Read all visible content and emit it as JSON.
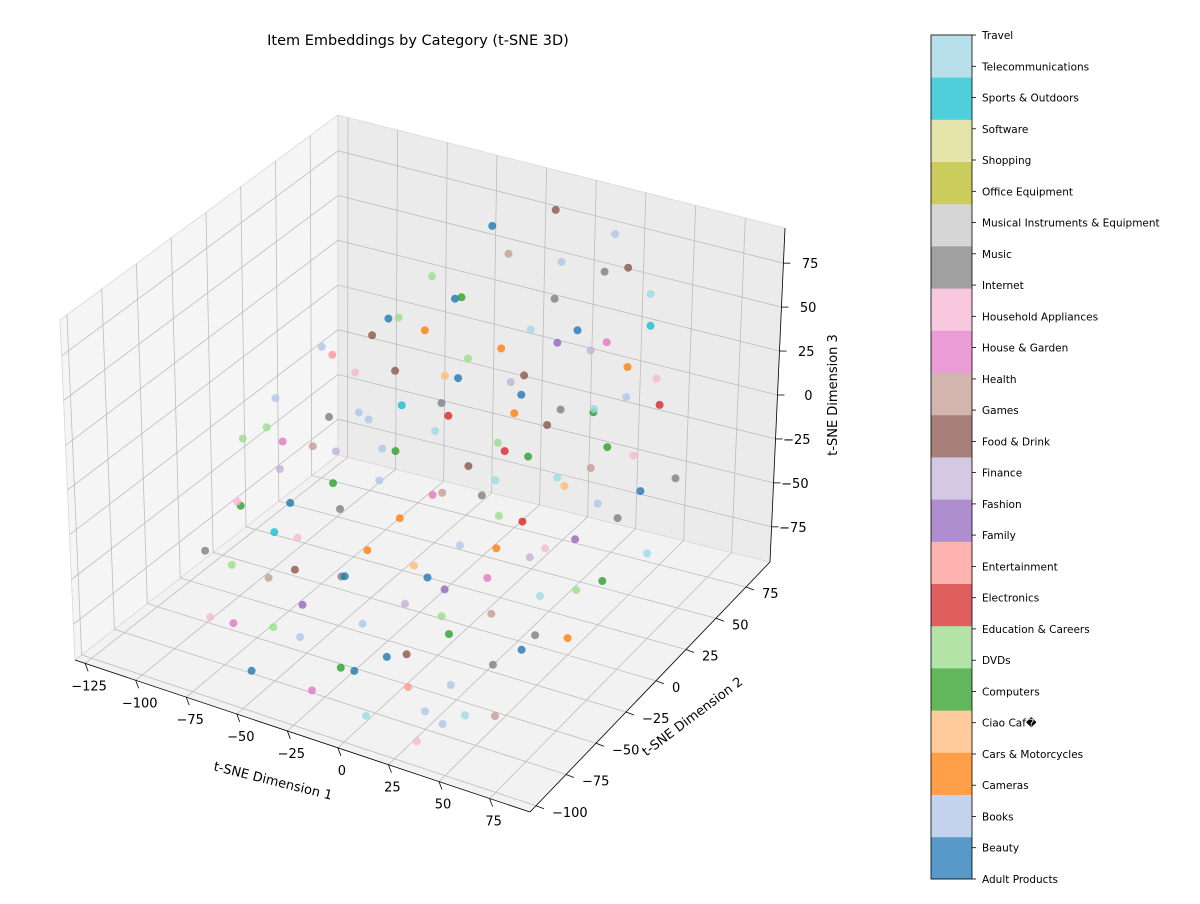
{
  "chart_data": {
    "type": "scatter",
    "projection": "3d",
    "title": "Item Embeddings by Category (t-SNE 3D)",
    "xlabel": "t-SNE Dimension 1",
    "ylabel": "t-SNE Dimension 2",
    "zlabel": "t-SNE Dimension 3",
    "xlim": [
      -130,
      95
    ],
    "ylim": [
      -105,
      95
    ],
    "zlim": [
      -95,
      95
    ],
    "xticks": [
      -125,
      -100,
      -75,
      -50,
      -25,
      0,
      25,
      50,
      75
    ],
    "yticks": [
      -100,
      -75,
      -50,
      -25,
      0,
      25,
      50,
      75
    ],
    "zticks": [
      -75,
      -50,
      -25,
      0,
      25,
      50,
      75
    ],
    "grid": true,
    "legend": "colorbar-right",
    "colormap": "tab20",
    "categories": [
      {
        "name": "Adult Products",
        "color": "#5899C9"
      },
      {
        "name": "Beauty",
        "color": "#C3D4EC"
      },
      {
        "name": "Books",
        "color": "#FF9F48"
      },
      {
        "name": "Cameras",
        "color": "#FFCB9A"
      },
      {
        "name": "Cars & Motorcycles",
        "color": "#62B65C"
      },
      {
        "name": "Ciao Caf�",
        "color": "#B4E3A8"
      },
      {
        "name": "Computers",
        "color": "#DF5F5F"
      },
      {
        "name": "DVDs",
        "color": "#FFB3B1"
      },
      {
        "name": "Education & Careers",
        "color": "#AE8ECF"
      },
      {
        "name": "Electronics",
        "color": "#D4C8E2"
      },
      {
        "name": "Entertainment",
        "color": "#A98079"
      },
      {
        "name": "Family",
        "color": "#D2B5AE"
      },
      {
        "name": "Fashion",
        "color": "#E99CD5"
      },
      {
        "name": "Finance",
        "color": "#F9C8DE"
      },
      {
        "name": "Food & Drink",
        "color": "#A0A0A0"
      },
      {
        "name": "Games",
        "color": "#D6D6D6"
      },
      {
        "name": "Health",
        "color": "#CACC5B"
      },
      {
        "name": "House & Garden",
        "color": "#E4E4AB"
      },
      {
        "name": "Household Appliances",
        "color": "#4FCEDB"
      },
      {
        "name": "Internet",
        "color": "#B7E0EA"
      }
    ],
    "colorbar_labels": [
      "Adult Products",
      "Beauty",
      "Books",
      "Cameras",
      "Cars & Motorcycles",
      "Ciao Caf�",
      "Computers",
      "DVDs",
      "Education & Careers",
      "Electronics",
      "Entertainment",
      "Family",
      "Fashion",
      "Finance",
      "Food & Drink",
      "Games",
      "Health",
      "House & Garden",
      "Household Appliances",
      "Internet",
      "Music",
      "Musical Instruments & Equipment",
      "Office Equipment",
      "Shopping",
      "Software",
      "Sports & Outdoors",
      "Telecommunications",
      "Travel"
    ],
    "point_colors": {
      "blue": "#1f77b4",
      "light_blue": "#aec7e8",
      "orange": "#ff7f0e",
      "light_orange": "#ffbb78",
      "green": "#2ca02c",
      "light_green": "#98df8a",
      "red": "#d62728",
      "light_red": "#ff9896",
      "purple": "#9467bd",
      "light_purple": "#c5b0d5",
      "brown": "#8c564b",
      "light_brown": "#c49c94",
      "pink": "#e377c2",
      "light_pink": "#f7b6d2",
      "gray": "#7f7f7f",
      "light_gray": "#c7c7c7",
      "olive": "#bcbd22",
      "light_olive": "#dbdb8d",
      "cyan": "#17becf",
      "light_cyan": "#9edae5"
    },
    "points": [
      {
        "x": 40,
        "y": 60,
        "z": 80,
        "c": "brown"
      },
      {
        "x": -30,
        "y": 40,
        "z": 55,
        "c": "green"
      },
      {
        "x": 10,
        "y": 50,
        "z": 60,
        "c": "gray"
      },
      {
        "x": 60,
        "y": 30,
        "z": 50,
        "c": "orange"
      },
      {
        "x": -60,
        "y": 30,
        "z": 40,
        "c": "blue"
      },
      {
        "x": -80,
        "y": 10,
        "z": 30,
        "c": "light_blue"
      },
      {
        "x": -50,
        "y": 20,
        "z": 20,
        "c": "brown"
      },
      {
        "x": -20,
        "y": 30,
        "z": 30,
        "c": "light_green"
      },
      {
        "x": 20,
        "y": 10,
        "z": 35,
        "c": "blue"
      },
      {
        "x": 50,
        "y": 20,
        "z": 30,
        "c": "light_cyan"
      },
      {
        "x": 70,
        "y": 20,
        "z": 10,
        "c": "light_pink"
      },
      {
        "x": 80,
        "y": 10,
        "z": 0,
        "c": "blue"
      },
      {
        "x": -90,
        "y": -10,
        "z": 10,
        "c": "light_blue"
      },
      {
        "x": -70,
        "y": 0,
        "z": 0,
        "c": "gray"
      },
      {
        "x": -40,
        "y": 10,
        "z": 10,
        "c": "cyan"
      },
      {
        "x": -10,
        "y": 0,
        "z": 20,
        "c": "red"
      },
      {
        "x": 10,
        "y": 20,
        "z": 15,
        "c": "orange"
      },
      {
        "x": 30,
        "y": 0,
        "z": 10,
        "c": "green"
      },
      {
        "x": 55,
        "y": 10,
        "z": 5,
        "c": "light_brown"
      },
      {
        "x": 75,
        "y": 0,
        "z": -10,
        "c": "gray"
      },
      {
        "x": -100,
        "y": -20,
        "z": -10,
        "c": "light_green"
      },
      {
        "x": -80,
        "y": -20,
        "z": -5,
        "c": "pink"
      },
      {
        "x": -60,
        "y": -10,
        "z": -10,
        "c": "light_purple"
      },
      {
        "x": -30,
        "y": -10,
        "z": 0,
        "c": "green"
      },
      {
        "x": 0,
        "y": 0,
        "z": -5,
        "c": "brown"
      },
      {
        "x": 20,
        "y": -10,
        "z": 0,
        "c": "light_cyan"
      },
      {
        "x": 40,
        "y": -20,
        "z": -10,
        "c": "red"
      },
      {
        "x": 60,
        "y": -10,
        "z": -20,
        "c": "purple"
      },
      {
        "x": 80,
        "y": -20,
        "z": -30,
        "c": "green"
      },
      {
        "x": -90,
        "y": -40,
        "z": -30,
        "c": "light_pink"
      },
      {
        "x": -70,
        "y": -30,
        "z": -30,
        "c": "blue"
      },
      {
        "x": -45,
        "y": -30,
        "z": -25,
        "c": "gray"
      },
      {
        "x": -15,
        "y": -30,
        "z": -20,
        "c": "orange"
      },
      {
        "x": 15,
        "y": -30,
        "z": -25,
        "c": "light_blue"
      },
      {
        "x": 35,
        "y": -40,
        "z": -30,
        "c": "pink"
      },
      {
        "x": 55,
        "y": -30,
        "z": -40,
        "c": "light_cyan"
      },
      {
        "x": 75,
        "y": -40,
        "z": -50,
        "c": "orange"
      },
      {
        "x": -80,
        "y": -60,
        "z": -50,
        "c": "light_green"
      },
      {
        "x": -55,
        "y": -50,
        "z": -50,
        "c": "brown"
      },
      {
        "x": -30,
        "y": -50,
        "z": -45,
        "c": "blue"
      },
      {
        "x": 0,
        "y": -50,
        "z": -50,
        "c": "light_purple"
      },
      {
        "x": 25,
        "y": -55,
        "z": -55,
        "c": "green"
      },
      {
        "x": 50,
        "y": -60,
        "z": -60,
        "c": "gray"
      },
      {
        "x": -70,
        "y": -75,
        "z": -70,
        "c": "pink"
      },
      {
        "x": -40,
        "y": -70,
        "z": -70,
        "c": "light_blue"
      },
      {
        "x": -10,
        "y": -75,
        "z": -75,
        "c": "blue"
      },
      {
        "x": 20,
        "y": -80,
        "z": -70,
        "c": "light_red"
      },
      {
        "x": 45,
        "y": -75,
        "z": -80,
        "c": "light_cyan"
      },
      {
        "x": -20,
        "y": 60,
        "z": 70,
        "c": "light_brown"
      },
      {
        "x": 0,
        "y": 70,
        "z": 65,
        "c": "light_blue"
      },
      {
        "x": 25,
        "y": 65,
        "z": 70,
        "c": "gray"
      },
      {
        "x": 45,
        "y": 70,
        "z": 60,
        "c": "light_cyan"
      },
      {
        "x": -40,
        "y": 50,
        "z": 45,
        "c": "blue"
      },
      {
        "x": 15,
        "y": 45,
        "z": 40,
        "c": "purple"
      },
      {
        "x": 35,
        "y": 40,
        "z": 45,
        "c": "light_purple"
      },
      {
        "x": 65,
        "y": 45,
        "z": 35,
        "c": "light_pink"
      },
      {
        "x": -65,
        "y": 45,
        "z": 30,
        "c": "light_green"
      },
      {
        "x": -25,
        "y": 20,
        "z": 25,
        "c": "light_orange"
      },
      {
        "x": 5,
        "y": 35,
        "z": 25,
        "c": "brown"
      },
      {
        "x": 30,
        "y": 25,
        "z": 20,
        "c": "gray"
      },
      {
        "x": -85,
        "y": 25,
        "z": 15,
        "c": "light_red"
      },
      {
        "x": -50,
        "y": 0,
        "z": 5,
        "c": "light_blue"
      },
      {
        "x": -20,
        "y": 5,
        "z": 5,
        "c": "light_cyan"
      },
      {
        "x": 5,
        "y": 15,
        "z": 0,
        "c": "light_green"
      },
      {
        "x": 45,
        "y": 5,
        "z": -5,
        "c": "light_orange"
      },
      {
        "x": 65,
        "y": 0,
        "z": -5,
        "c": "light_blue"
      },
      {
        "x": -75,
        "y": -5,
        "z": -15,
        "c": "light_brown"
      },
      {
        "x": -35,
        "y": -15,
        "z": -15,
        "c": "light_blue"
      },
      {
        "x": -5,
        "y": -20,
        "z": -10,
        "c": "pink"
      },
      {
        "x": 25,
        "y": -15,
        "z": -15,
        "c": "light_green"
      },
      {
        "x": 50,
        "y": -30,
        "z": -20,
        "c": "light_purple"
      },
      {
        "x": -95,
        "y": -30,
        "z": -40,
        "c": "green"
      },
      {
        "x": -60,
        "y": -40,
        "z": -40,
        "c": "light_pink"
      },
      {
        "x": -25,
        "y": -40,
        "z": -35,
        "c": "orange"
      },
      {
        "x": 5,
        "y": -40,
        "z": -40,
        "c": "blue"
      },
      {
        "x": 40,
        "y": -45,
        "z": -45,
        "c": "light_brown"
      },
      {
        "x": 65,
        "y": -50,
        "z": -45,
        "c": "gray"
      },
      {
        "x": -45,
        "y": -60,
        "z": -60,
        "c": "purple"
      },
      {
        "x": -15,
        "y": -60,
        "z": -60,
        "c": "light_blue"
      },
      {
        "x": 10,
        "y": -65,
        "z": -65,
        "c": "brown"
      },
      {
        "x": 35,
        "y": -70,
        "z": -70,
        "c": "light_blue"
      },
      {
        "x": -55,
        "y": -85,
        "z": -85,
        "c": "blue"
      },
      {
        "x": -25,
        "y": -85,
        "z": -85,
        "c": "pink"
      },
      {
        "x": 5,
        "y": -90,
        "z": -85,
        "c": "light_cyan"
      },
      {
        "x": 30,
        "y": -90,
        "z": -90,
        "c": "light_pink"
      },
      {
        "x": -10,
        "y": 80,
        "z": 85,
        "c": "brown"
      },
      {
        "x": 20,
        "y": 80,
        "z": 80,
        "c": "light_blue"
      },
      {
        "x": -35,
        "y": 70,
        "z": 75,
        "c": "blue"
      },
      {
        "x": 55,
        "y": 55,
        "z": 55,
        "c": "cyan"
      },
      {
        "x": 70,
        "y": 40,
        "z": 25,
        "c": "red"
      },
      {
        "x": -55,
        "y": 55,
        "z": 50,
        "c": "light_green"
      },
      {
        "x": 0,
        "y": 25,
        "z": 45,
        "c": "orange"
      },
      {
        "x": 25,
        "y": 45,
        "z": 50,
        "c": "blue"
      },
      {
        "x": -75,
        "y": 40,
        "z": 20,
        "c": "brown"
      },
      {
        "x": -5,
        "y": 40,
        "z": 15,
        "c": "light_purple"
      },
      {
        "x": 40,
        "y": 35,
        "z": 15,
        "c": "green"
      },
      {
        "x": 85,
        "y": 30,
        "z": -5,
        "c": "gray"
      },
      {
        "x": -105,
        "y": 5,
        "z": -20,
        "c": "light_green"
      },
      {
        "x": -65,
        "y": 15,
        "z": -5,
        "c": "light_blue"
      },
      {
        "x": -30,
        "y": 25,
        "z": 5,
        "c": "gray"
      },
      {
        "x": 15,
        "y": 5,
        "z": 5,
        "c": "red"
      },
      {
        "x": 35,
        "y": 15,
        "z": -10,
        "c": "light_cyan"
      },
      {
        "x": 90,
        "y": 0,
        "z": -25,
        "c": "light_cyan"
      },
      {
        "x": -85,
        "y": -15,
        "z": -25,
        "c": "light_purple"
      },
      {
        "x": -55,
        "y": -20,
        "z": -20,
        "c": "green"
      },
      {
        "x": -10,
        "y": -5,
        "z": -20,
        "c": "light_brown"
      },
      {
        "x": 30,
        "y": -25,
        "z": -25,
        "c": "orange"
      },
      {
        "x": 70,
        "y": -25,
        "z": -35,
        "c": "light_green"
      },
      {
        "x": -100,
        "y": -50,
        "z": -55,
        "c": "gray"
      },
      {
        "x": -65,
        "y": -55,
        "z": -55,
        "c": "light_brown"
      },
      {
        "x": -35,
        "y": -45,
        "z": -50,
        "c": "gray"
      },
      {
        "x": 15,
        "y": -45,
        "z": -55,
        "c": "light_green"
      },
      {
        "x": 55,
        "y": -45,
        "z": -60,
        "c": "blue"
      },
      {
        "x": -85,
        "y": -70,
        "z": -75,
        "c": "light_pink"
      },
      {
        "x": -20,
        "y": -70,
        "z": -80,
        "c": "green"
      },
      {
        "x": 25,
        "y": -75,
        "z": -85,
        "c": "light_blue"
      },
      {
        "x": 60,
        "y": -75,
        "z": -75,
        "c": "light_brown"
      },
      {
        "x": -5,
        "y": 55,
        "z": 35,
        "c": "light_cyan"
      },
      {
        "x": 30,
        "y": 60,
        "z": 35,
        "c": "pink"
      },
      {
        "x": -45,
        "y": 35,
        "z": 35,
        "c": "orange"
      },
      {
        "x": 50,
        "y": 45,
        "z": 20,
        "c": "light_blue"
      },
      {
        "x": -15,
        "y": 15,
        "z": 30,
        "c": "blue"
      },
      {
        "x": 20,
        "y": 30,
        "z": 5,
        "c": "brown"
      },
      {
        "x": -60,
        "y": 5,
        "z": 25,
        "c": "light_pink"
      },
      {
        "x": 60,
        "y": 15,
        "z": 15,
        "c": "green"
      },
      {
        "x": -40,
        "y": -5,
        "z": -5,
        "c": "light_blue"
      },
      {
        "x": 10,
        "y": -5,
        "z": -15,
        "c": "gray"
      },
      {
        "x": 45,
        "y": -10,
        "z": -30,
        "c": "light_pink"
      },
      {
        "x": -75,
        "y": -35,
        "z": -45,
        "c": "cyan"
      },
      {
        "x": -5,
        "y": -35,
        "z": -40,
        "c": "light_orange"
      },
      {
        "x": 20,
        "y": -50,
        "z": -35,
        "c": "purple"
      },
      {
        "x": -50,
        "y": -75,
        "z": -65,
        "c": "light_green"
      },
      {
        "x": 0,
        "y": -65,
        "z": -70,
        "c": "blue"
      },
      {
        "x": 40,
        "y": -85,
        "z": -80,
        "c": "light_blue"
      }
    ]
  }
}
